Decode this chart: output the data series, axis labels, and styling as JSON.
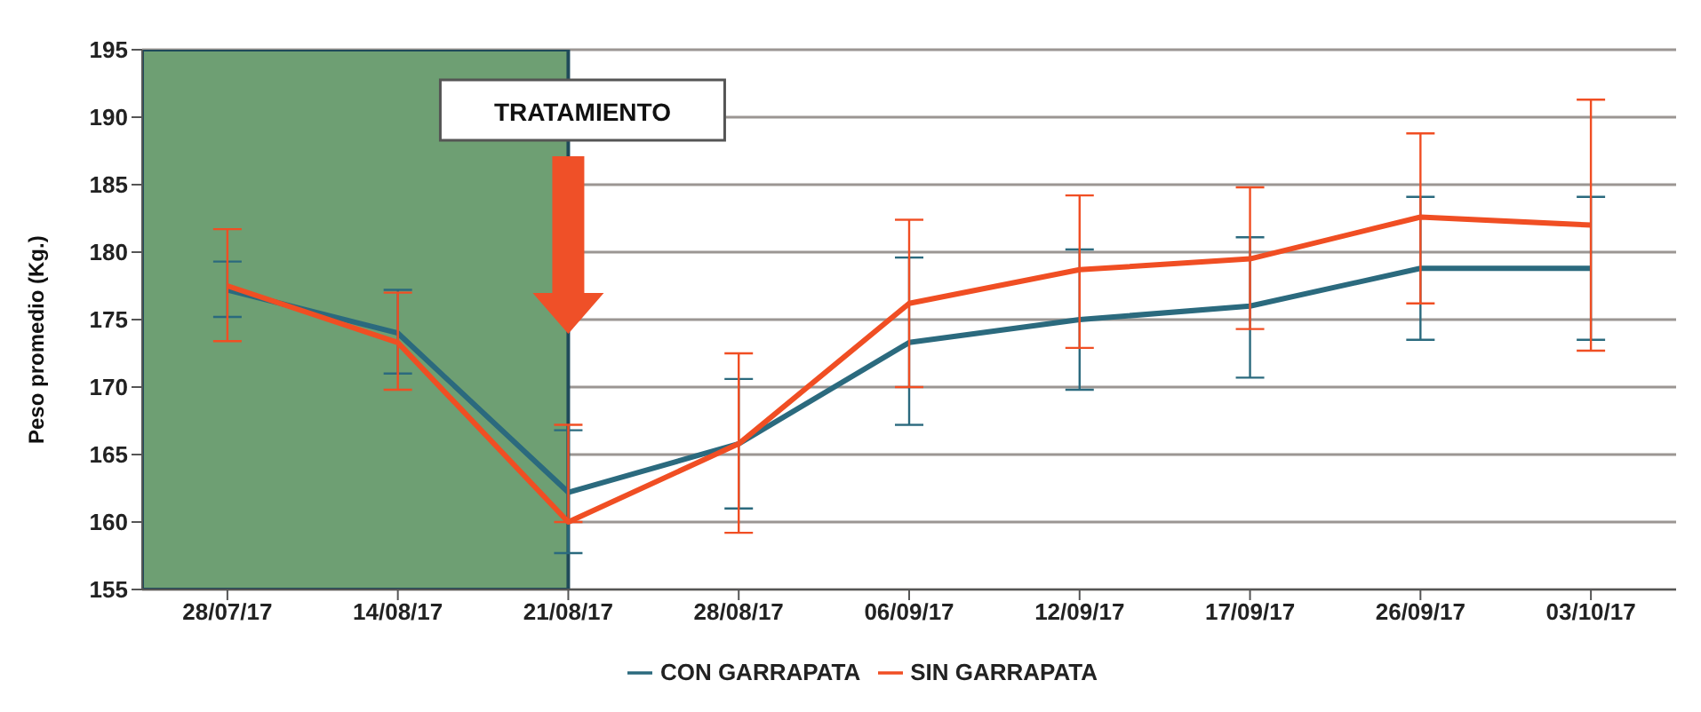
{
  "chart_data": {
    "type": "line",
    "ylabel": "Peso promedio (Kg.)",
    "categories": [
      "28/07/17",
      "14/08/17",
      "21/08/17",
      "28/08/17",
      "06/09/17",
      "12/09/17",
      "17/09/17",
      "26/09/17",
      "03/10/17"
    ],
    "series": [
      {
        "name": "CON GARRAPATA",
        "color": "#2b6a7e",
        "values": [
          177.2,
          174,
          162.2,
          165.8,
          173.3,
          175,
          176,
          178.8,
          178.8
        ],
        "errors": [
          [
            175.2,
            179.3
          ],
          [
            171,
            177.2
          ],
          [
            157.7,
            166.8
          ],
          [
            161,
            170.6
          ],
          [
            167.2,
            179.6
          ],
          [
            169.8,
            180.2
          ],
          [
            170.7,
            181.1
          ],
          [
            173.5,
            184.1
          ],
          [
            173.5,
            184.1
          ]
        ]
      },
      {
        "name": "SIN GARRAPATA",
        "color": "#f04e23",
        "values": [
          177.5,
          173.3,
          160,
          165.8,
          176.2,
          178.7,
          179.5,
          182.6,
          182
        ],
        "errors": [
          [
            173.4,
            181.7
          ],
          [
            169.8,
            177
          ],
          [
            160,
            167.2
          ],
          [
            159.2,
            172.5
          ],
          [
            170,
            182.4
          ],
          [
            172.9,
            184.2
          ],
          [
            174.3,
            184.8
          ],
          [
            176.2,
            188.8
          ],
          [
            172.7,
            191.3
          ]
        ]
      }
    ],
    "ylim": [
      155,
      195
    ],
    "yticks": [
      155,
      160,
      165,
      170,
      175,
      180,
      185,
      190,
      195
    ],
    "grid": "y",
    "legend": "bottom",
    "bands": [
      {
        "axis": "x",
        "from": "28/07/17",
        "to": "21/08/17",
        "color": "#6e9f73"
      }
    ],
    "annotations": [
      {
        "text": "TRATAMIENTO",
        "x": "21/08/17"
      }
    ]
  }
}
